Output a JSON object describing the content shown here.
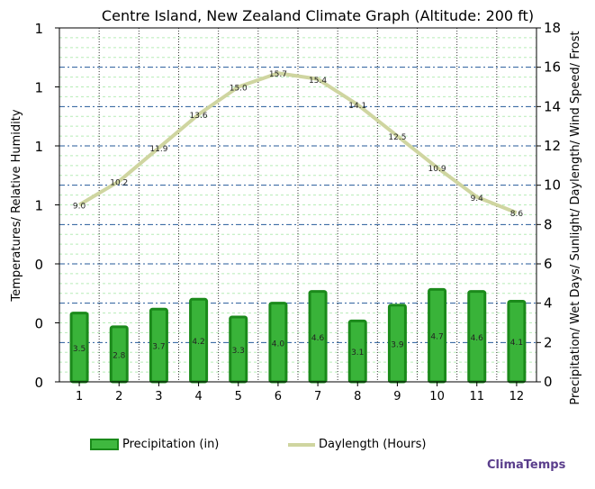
{
  "chart_data": {
    "type": "bar+line",
    "title": "Centre Island, New Zealand Climate Graph (Altitude: 200 ft)",
    "ylabel_left": "Temperatures/ Relative Humidity",
    "ylabel_right": "Precipitation/ Wet Days/ Sunlight/ Daylength/ Wind Speed/ Frost",
    "categories": [
      "1",
      "2",
      "3",
      "4",
      "5",
      "6",
      "7",
      "8",
      "9",
      "10",
      "11",
      "12"
    ],
    "left_ticks": [
      "0",
      "0",
      "0",
      "1",
      "1",
      "1",
      "1"
    ],
    "right_ylim": [
      0,
      18
    ],
    "right_ticks": [
      0,
      2,
      4,
      6,
      8,
      10,
      12,
      14,
      16,
      18
    ],
    "series": [
      {
        "name": "Precipitation (in)",
        "kind": "bar",
        "color": "#2fa52f",
        "values": [
          3.5,
          2.8,
          3.7,
          4.2,
          3.3,
          4.0,
          4.6,
          3.1,
          3.9,
          4.7,
          4.6,
          4.1
        ]
      },
      {
        "name": "Daylength (Hours)",
        "kind": "line",
        "color": "#cfd5a0",
        "values": [
          9.0,
          10.2,
          11.9,
          13.6,
          15.0,
          15.7,
          15.4,
          14.1,
          12.5,
          10.9,
          9.4,
          8.6
        ]
      }
    ],
    "grid": true,
    "legend": "bottom"
  },
  "legend": {
    "bar_label": "Precipitation (in)",
    "line_label": "Daylength (Hours)"
  },
  "brand": "ClimaTemps"
}
